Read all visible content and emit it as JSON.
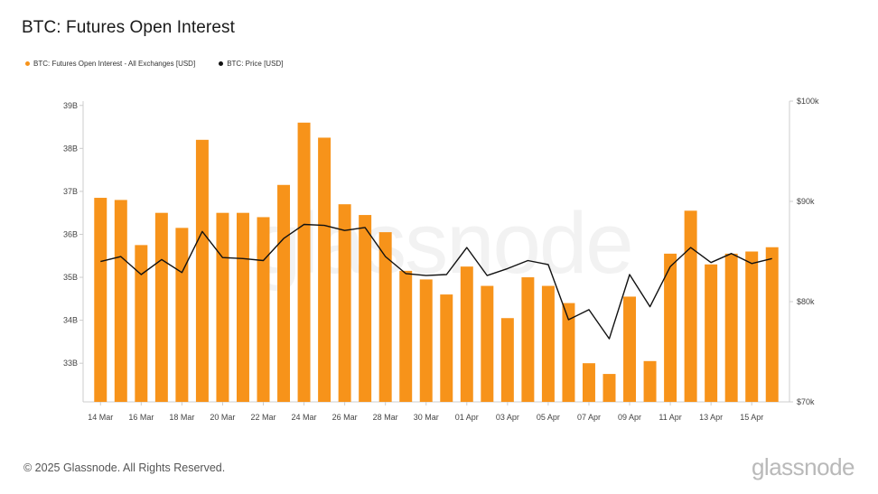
{
  "title": "BTC: Futures Open Interest",
  "legend": [
    {
      "label": "BTC: Futures Open Interest - All Exchanges [USD]",
      "color": "#f7931a"
    },
    {
      "label": "BTC: Price [USD]",
      "color": "#111111"
    }
  ],
  "footer": "© 2025 Glassnode. All Rights Reserved.",
  "brand": "glassnode",
  "watermark": "glassnode",
  "colors": {
    "bar": "#f7931a",
    "line": "#111111",
    "axis": "#cccccc",
    "tick_text": "#444444"
  },
  "chart_data": {
    "type": "bar",
    "categories": [
      "14 Mar",
      "15 Mar",
      "16 Mar",
      "17 Mar",
      "18 Mar",
      "19 Mar",
      "20 Mar",
      "21 Mar",
      "22 Mar",
      "23 Mar",
      "24 Mar",
      "25 Mar",
      "26 Mar",
      "27 Mar",
      "28 Mar",
      "29 Mar",
      "30 Mar",
      "31 Mar",
      "01 Apr",
      "02 Apr",
      "03 Apr",
      "04 Apr",
      "05 Apr",
      "06 Apr",
      "07 Apr",
      "08 Apr",
      "09 Apr",
      "10 Apr",
      "11 Apr",
      "12 Apr",
      "13 Apr",
      "14 Apr",
      "15 Apr",
      "16 Apr"
    ],
    "x_tick_labels": [
      "14 Mar",
      "16 Mar",
      "18 Mar",
      "20 Mar",
      "22 Mar",
      "24 Mar",
      "26 Mar",
      "28 Mar",
      "30 Mar",
      "01 Apr",
      "03 Apr",
      "05 Apr",
      "07 Apr",
      "09 Apr",
      "11 Apr",
      "13 Apr",
      "15 Apr"
    ],
    "series": [
      {
        "name": "BTC: Futures Open Interest - All Exchanges [USD]",
        "type": "bar",
        "axis": "left",
        "values": [
          36.85,
          36.8,
          35.75,
          36.5,
          36.15,
          38.2,
          36.5,
          36.5,
          36.4,
          37.15,
          38.6,
          38.25,
          36.7,
          36.45,
          36.05,
          35.15,
          34.95,
          34.6,
          35.25,
          34.8,
          34.05,
          35.0,
          34.8,
          34.4,
          33.0,
          32.75,
          34.55,
          33.05,
          35.55,
          36.55,
          35.3,
          35.55,
          35.6,
          35.7
        ]
      },
      {
        "name": "BTC: Price [USD]",
        "type": "line",
        "axis": "right",
        "values": [
          84000,
          84500,
          82700,
          84200,
          82900,
          87000,
          84400,
          84300,
          84100,
          86300,
          87700,
          87600,
          87100,
          87400,
          84500,
          82800,
          82600,
          82700,
          85400,
          82600,
          83300,
          84100,
          83700,
          78200,
          79200,
          76300,
          82700,
          79500,
          83500,
          85400,
          83900,
          84800,
          83800,
          84300
        ]
      }
    ],
    "y_left": {
      "ticks": [
        "33B",
        "34B",
        "35B",
        "36B",
        "37B",
        "38B",
        "39B"
      ],
      "values": [
        33,
        34,
        35,
        36,
        37,
        38,
        39
      ],
      "ylim": [
        32.1,
        39.1
      ]
    },
    "y_right": {
      "ticks": [
        "$70k",
        "$80k",
        "$90k",
        "$100k"
      ],
      "values": [
        70000,
        80000,
        90000,
        100000
      ],
      "ylim": [
        70000,
        100000
      ]
    },
    "grid": false,
    "legend_position": "top-left"
  }
}
